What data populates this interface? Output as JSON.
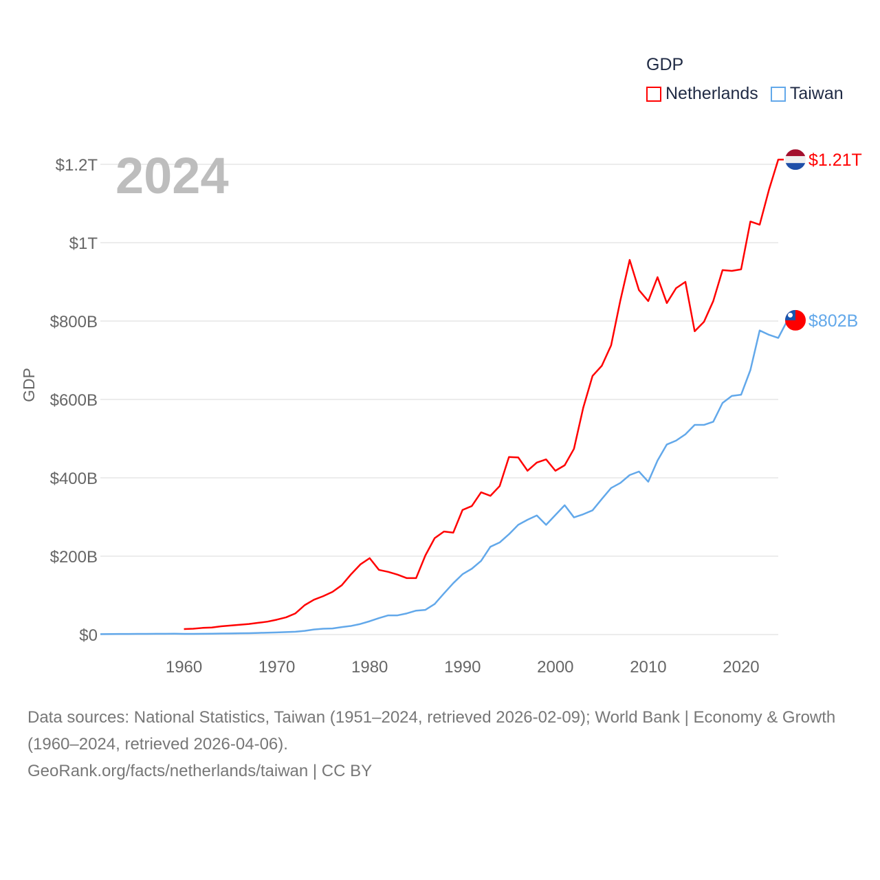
{
  "chart_data": {
    "type": "line",
    "title": "GDP",
    "year_label": "2024",
    "ylabel": "GDP",
    "xlabel": "",
    "xlim": [
      1951,
      2024
    ],
    "ylim": [
      0,
      1200
    ],
    "y_unit": "billion USD",
    "grid": true,
    "legend_placement": "top-right",
    "x_ticks": [
      1960,
      1970,
      1980,
      1990,
      2000,
      2010,
      2020
    ],
    "x_tick_labels": [
      "1960",
      "1970",
      "1980",
      "1990",
      "2000",
      "2010",
      "2020"
    ],
    "y_ticks": [
      0,
      200,
      400,
      600,
      800,
      1000,
      1200
    ],
    "y_tick_labels": [
      "$0",
      "$200B",
      "$400B",
      "$600B",
      "$800B",
      "$1T",
      "$1.2T"
    ],
    "series": [
      {
        "name": "Netherlands",
        "color": "#ff0000",
        "end_label": "$1.21T",
        "flag": "netherlands-flag",
        "start_year": 1960,
        "values": [
          14,
          15,
          17,
          18,
          21,
          23,
          25,
          27,
          30,
          33,
          38,
          44,
          54,
          75,
          89,
          98,
          109,
          126,
          154,
          179,
          195,
          165,
          160,
          153,
          144,
          144,
          202,
          246,
          263,
          260,
          318,
          328,
          363,
          354,
          379,
          453,
          452,
          418,
          439,
          447,
          418,
          432,
          474,
          579,
          660,
          686,
          738,
          853,
          956,
          879,
          851,
          912,
          846,
          884,
          900,
          774,
          798,
          851,
          930,
          928,
          932,
          1054,
          1046,
          1135,
          1212
        ]
      },
      {
        "name": "Taiwan",
        "color": "#62a8ea",
        "end_label": "$802B",
        "flag": "taiwan-flag",
        "start_year": 1951,
        "values": [
          1.2,
          1.4,
          1.5,
          1.6,
          1.7,
          1.8,
          1.9,
          2.0,
          2.1,
          1.7,
          1.8,
          2.0,
          2.2,
          2.6,
          2.9,
          3.2,
          3.6,
          4.2,
          4.9,
          5.5,
          6.3,
          7.3,
          9.5,
          13,
          15,
          15.5,
          19,
          22,
          27,
          34,
          42,
          49,
          49,
          54,
          61,
          63,
          78,
          105,
          131,
          154,
          168,
          188,
          224,
          235,
          256,
          280,
          293,
          304,
          280,
          305,
          330,
          299,
          307,
          317,
          346,
          374,
          387,
          407,
          416,
          390,
          444,
          485,
          495,
          511,
          535,
          535,
          543,
          591,
          609,
          612,
          675,
          776,
          765,
          757,
          802
        ]
      }
    ]
  },
  "legend": {
    "title": "GDP",
    "items": [
      "Netherlands",
      "Taiwan"
    ]
  },
  "footer": {
    "sources": "Data sources: National Statistics, Taiwan (1951–2024, retrieved 2026-02-09); World Bank | Economy & Growth (1960–2024, retrieved 2026-04-06).",
    "credit": "GeoRank.org/facts/netherlands/taiwan | CC BY"
  }
}
